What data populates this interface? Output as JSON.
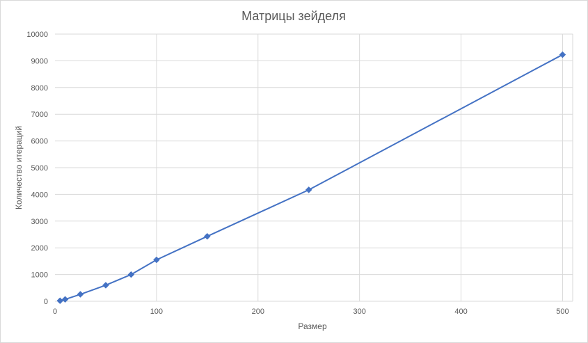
{
  "chart_data": {
    "type": "scatter",
    "title": "Матрицы зейделя",
    "xlabel": "Размер",
    "ylabel": "Количество итераций",
    "xlim": [
      0,
      510
    ],
    "ylim": [
      0,
      10000
    ],
    "x_ticks": [
      "0",
      "100",
      "200",
      "300",
      "400",
      "500"
    ],
    "y_ticks": [
      "0",
      "1000",
      "2000",
      "3000",
      "4000",
      "5000",
      "6000",
      "7000",
      "8000",
      "9000",
      "10000"
    ],
    "grid": true,
    "legend": "none",
    "series": [
      {
        "color": "#4472c4",
        "marker": "diamond",
        "line": "straight",
        "points": [
          {
            "x": 5,
            "y": 20
          },
          {
            "x": 10,
            "y": 70
          },
          {
            "x": 25,
            "y": 260
          },
          {
            "x": 50,
            "y": 600
          },
          {
            "x": 75,
            "y": 1000
          },
          {
            "x": 100,
            "y": 1550
          },
          {
            "x": 150,
            "y": 2430
          },
          {
            "x": 250,
            "y": 4170
          },
          {
            "x": 500,
            "y": 9230
          }
        ]
      }
    ]
  }
}
